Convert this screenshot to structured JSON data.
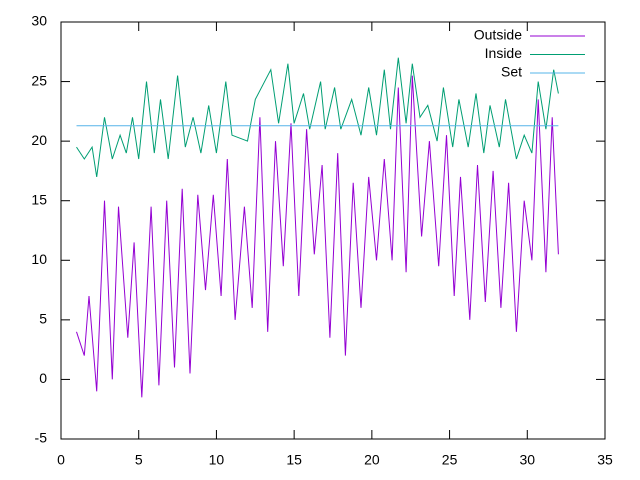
{
  "chart_data": {
    "type": "line",
    "xlim": [
      0,
      35
    ],
    "xticks": [
      0,
      5,
      10,
      15,
      20,
      25,
      30,
      35
    ],
    "ylim": [
      -5,
      30
    ],
    "yticks": [
      -5,
      0,
      5,
      10,
      15,
      20,
      25,
      30
    ],
    "legend": "top-right",
    "series": [
      {
        "name": "Outside",
        "color": "#9400d3",
        "x": [
          1,
          1.5,
          1.8,
          2.3,
          2.8,
          3.3,
          3.7,
          4.3,
          4.7,
          5.2,
          5.8,
          6.3,
          6.8,
          7.3,
          7.8,
          8.3,
          8.8,
          9.3,
          9.8,
          10.3,
          10.7,
          11.2,
          11.8,
          12.3,
          12.8,
          13.3,
          13.8,
          14.3,
          14.8,
          15.3,
          15.8,
          16.3,
          16.8,
          17.3,
          17.8,
          18.3,
          18.8,
          19.3,
          19.8,
          20.3,
          20.8,
          21.3,
          21.7,
          22.2,
          22.6,
          23.2,
          23.7,
          24.3,
          24.8,
          25.3,
          25.7,
          26.3,
          26.8,
          27.3,
          27.8,
          28.3,
          28.8,
          29.3,
          29.8,
          30.3,
          30.7,
          31.2,
          31.6,
          32
        ],
        "values": [
          4,
          2,
          7,
          -1,
          15,
          0,
          14.5,
          3.5,
          11.5,
          -1.5,
          14.5,
          -0.5,
          15,
          1,
          16,
          0.5,
          15.5,
          7.5,
          15.5,
          7,
          18.5,
          5,
          14.5,
          6,
          22,
          4,
          20,
          9.5,
          21.5,
          7,
          21,
          10.5,
          18,
          3.5,
          19,
          2,
          16.5,
          6,
          17,
          10,
          18.5,
          10,
          24.5,
          9,
          25.5,
          12,
          20,
          9.5,
          20.5,
          7,
          17,
          5,
          18,
          6.5,
          17.5,
          6,
          16.5,
          4,
          15,
          10,
          23.5,
          9,
          22,
          10.5
        ]
      },
      {
        "name": "Inside",
        "color": "#009e73",
        "x": [
          1,
          1.5,
          2,
          2.3,
          2.8,
          3.3,
          3.8,
          4.2,
          4.6,
          5,
          5.5,
          6,
          6.4,
          6.9,
          7.5,
          8,
          8.5,
          9,
          9.5,
          10,
          10.6,
          11,
          12,
          12.5,
          13.5,
          14,
          14.6,
          15,
          15.6,
          16,
          16.7,
          17,
          17.6,
          18,
          18.7,
          19.3,
          19.8,
          20.3,
          20.8,
          21.2,
          21.7,
          22.2,
          22.6,
          23.1,
          23.6,
          24.2,
          24.6,
          25.2,
          25.6,
          26.2,
          26.7,
          27.2,
          27.6,
          28.2,
          28.6,
          29.3,
          29.8,
          30.3,
          30.7,
          31.2,
          31.7,
          32
        ],
        "values": [
          19.5,
          18.5,
          19.5,
          17,
          22,
          18.5,
          20.5,
          19,
          22,
          18.5,
          25,
          19,
          23.5,
          18.5,
          25.5,
          19.5,
          22,
          19,
          23,
          19,
          25,
          20.5,
          20,
          23.5,
          26,
          21.5,
          26.5,
          21.5,
          24,
          21,
          25,
          21,
          24.5,
          21,
          23.5,
          20.5,
          24.5,
          20.5,
          26,
          21,
          27,
          21.5,
          26.5,
          22,
          23,
          20,
          24.5,
          19.5,
          23.5,
          19.5,
          24,
          19,
          23,
          19.5,
          23.5,
          18.5,
          20.5,
          19,
          25,
          21,
          26,
          24
        ]
      },
      {
        "name": "Set",
        "color": "#56b4e9",
        "x": [
          1,
          32
        ],
        "values": [
          21.3,
          21.3
        ]
      }
    ]
  }
}
